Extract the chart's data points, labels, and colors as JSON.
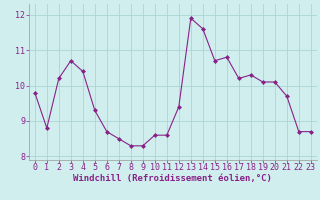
{
  "x": [
    0,
    1,
    2,
    3,
    4,
    5,
    6,
    7,
    8,
    9,
    10,
    11,
    12,
    13,
    14,
    15,
    16,
    17,
    18,
    19,
    20,
    21,
    22,
    23
  ],
  "y": [
    9.8,
    8.8,
    10.2,
    10.7,
    10.4,
    9.3,
    8.7,
    8.5,
    8.3,
    8.3,
    8.6,
    8.6,
    9.4,
    11.9,
    11.6,
    10.7,
    10.8,
    10.2,
    10.3,
    10.1,
    10.1,
    9.7,
    8.7,
    8.7
  ],
  "line_color": "#882288",
  "marker": "D",
  "marker_size": 2.0,
  "bg_color": "#d0eeee",
  "grid_color": "#aad4d4",
  "xlabel": "Windchill (Refroidissement éolien,°C)",
  "xlabel_color": "#882288",
  "xlabel_fontsize": 6.5,
  "tick_color": "#882288",
  "tick_fontsize": 6.0,
  "ylim": [
    7.9,
    12.3
  ],
  "xlim": [
    -0.5,
    23.5
  ],
  "yticks": [
    8,
    9,
    10,
    11,
    12
  ],
  "xticks": [
    0,
    1,
    2,
    3,
    4,
    5,
    6,
    7,
    8,
    9,
    10,
    11,
    12,
    13,
    14,
    15,
    16,
    17,
    18,
    19,
    20,
    21,
    22,
    23
  ]
}
